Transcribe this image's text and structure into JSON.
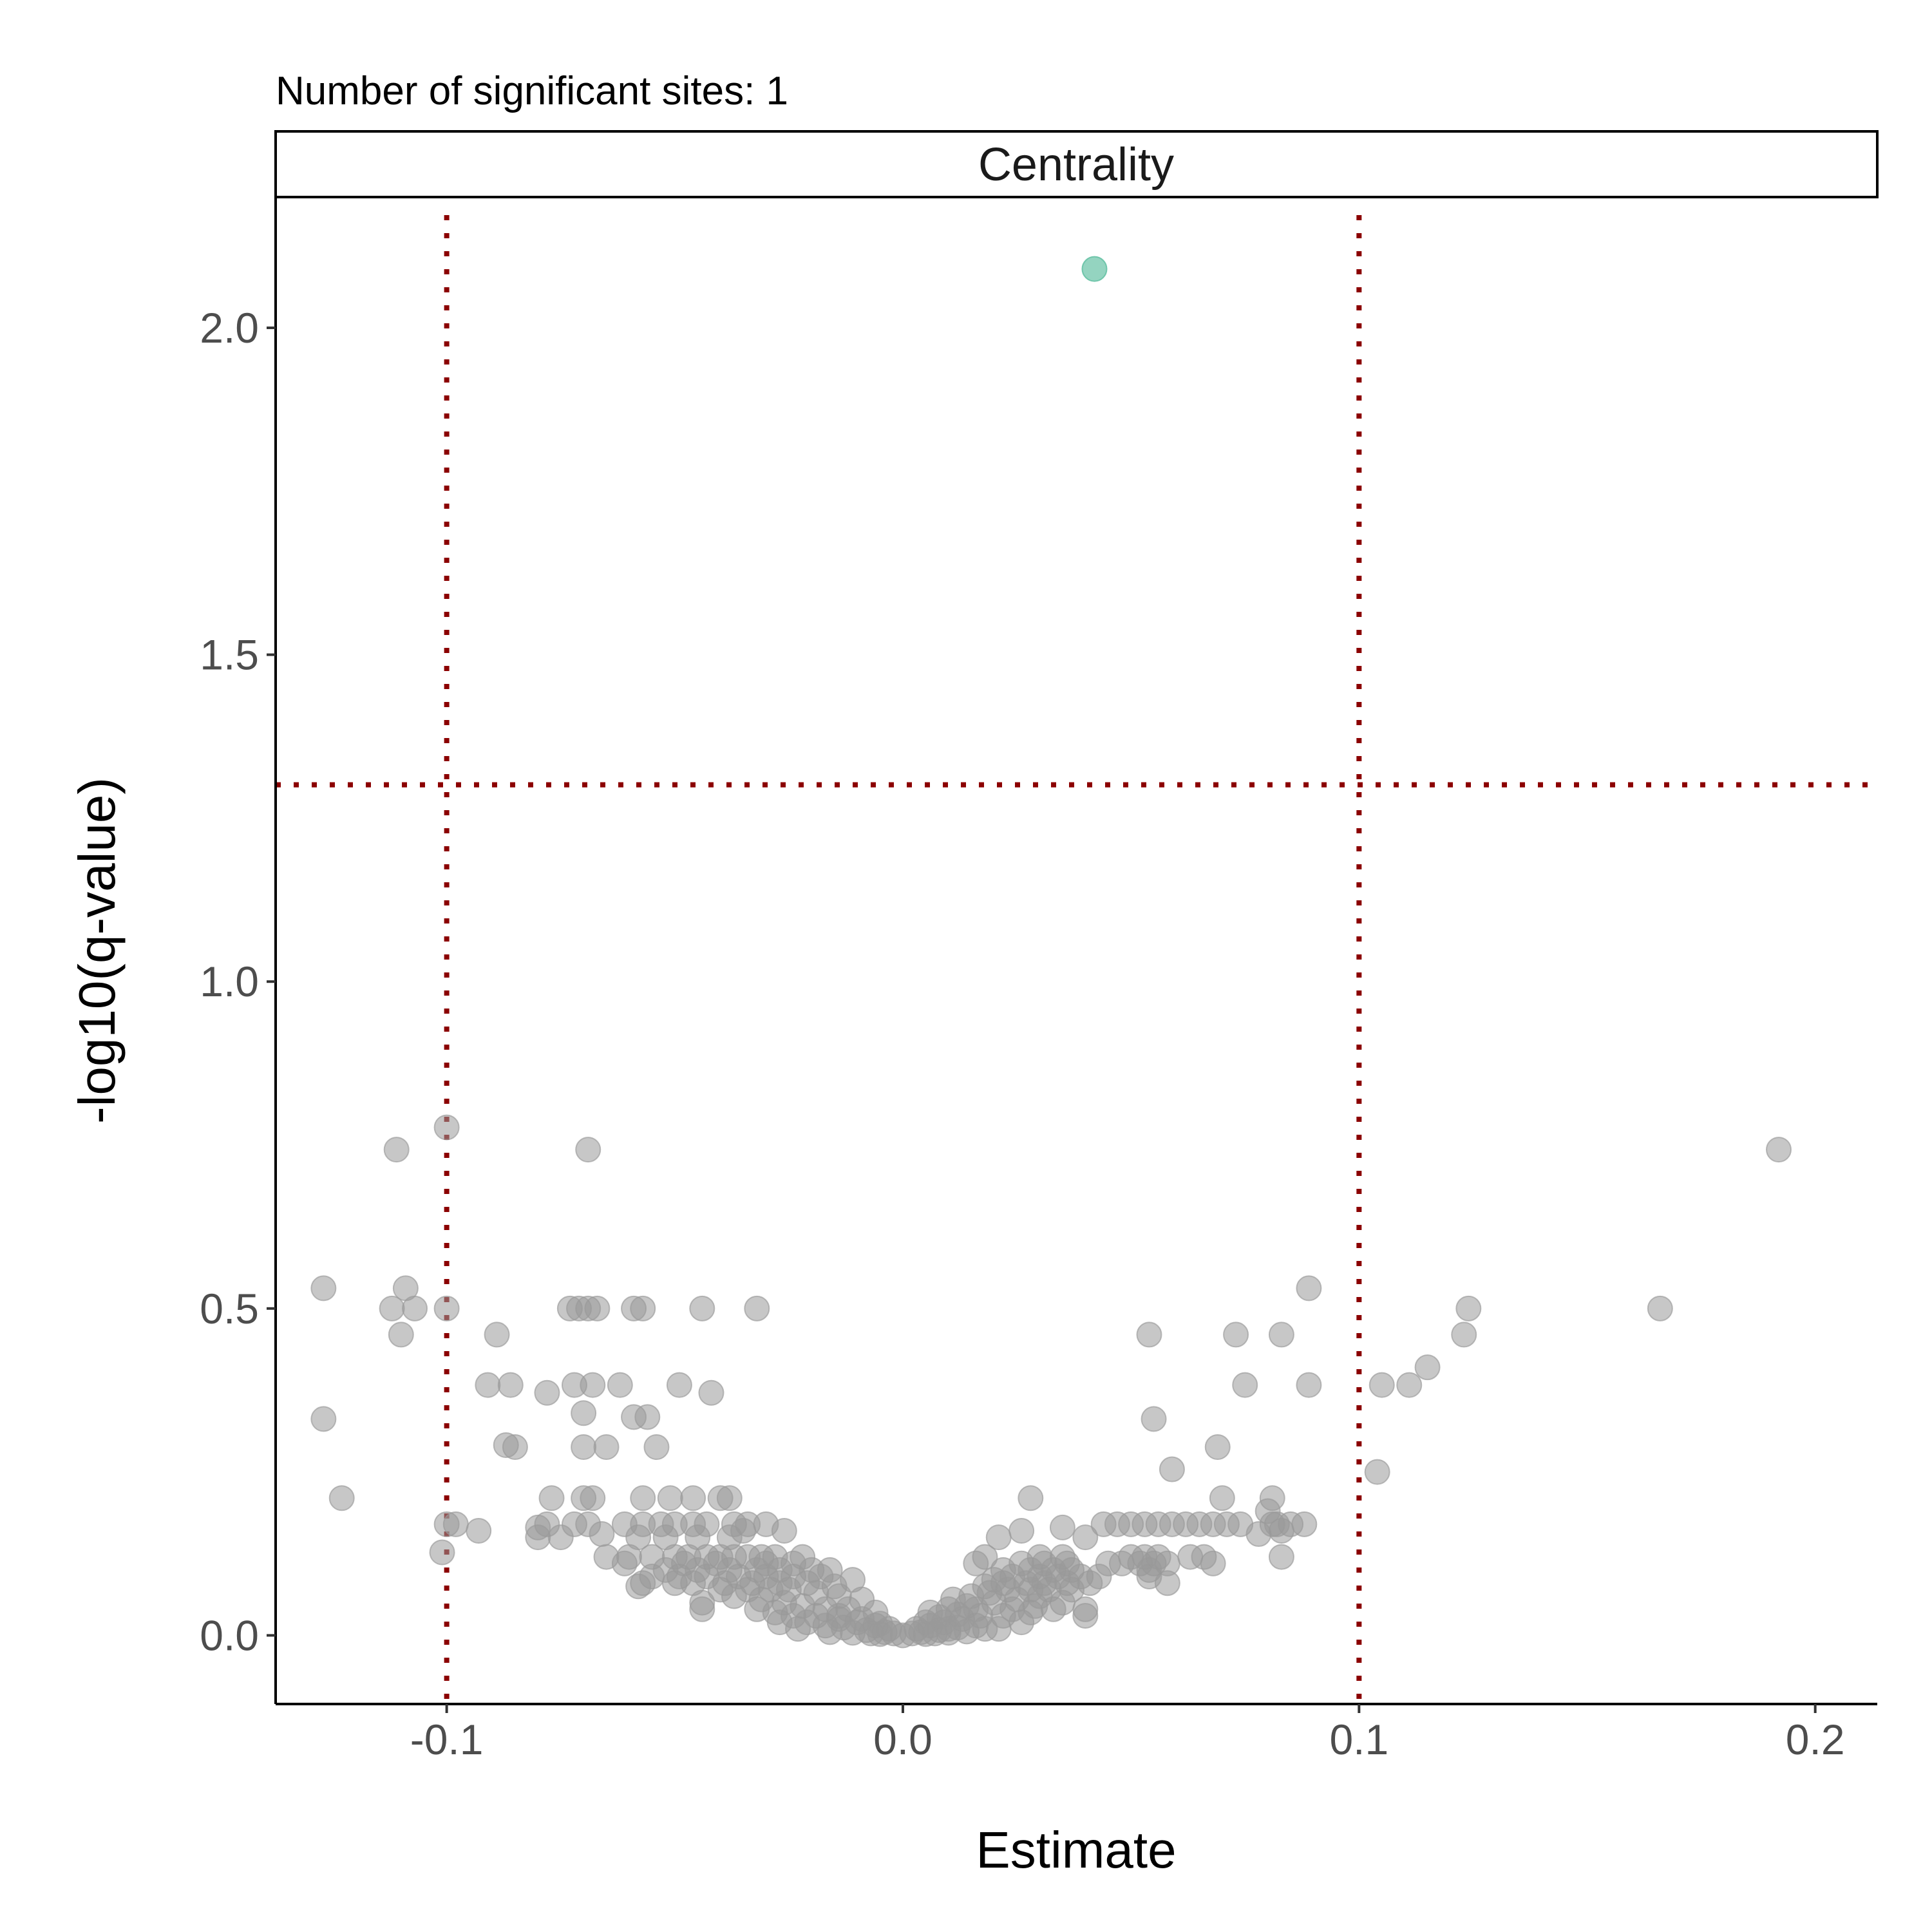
{
  "chart_data": {
    "type": "scatter",
    "subtitle": "Number of significant sites: 1",
    "facet_label": "Centrality",
    "xlabel": "Estimate",
    "ylabel": "-log10(q-value)",
    "xlim": [
      -0.1375,
      0.2136
    ],
    "ylim": [
      -0.105,
      2.2
    ],
    "x_ticks": [
      -0.1,
      0.0,
      0.1,
      0.2
    ],
    "x_tick_labels": [
      "-0.1",
      "0.0",
      "0.1",
      "0.2"
    ],
    "y_ticks": [
      0.0,
      0.5,
      1.0,
      1.5,
      2.0
    ],
    "y_tick_labels": [
      "0.0",
      "0.5",
      "1.0",
      "1.5",
      "2.0"
    ],
    "grid": false,
    "thresholds": {
      "x": [
        -0.1,
        0.1
      ],
      "y": [
        1.301
      ],
      "color": "#8b0000"
    },
    "colors": {
      "significant": "#66c2a5",
      "not_significant": "#999999"
    },
    "series": [
      {
        "name": "significant",
        "points": [
          [
            0.042,
            2.09
          ]
        ]
      },
      {
        "name": "not significant",
        "points": [
          [
            -0.1,
            0.777
          ],
          [
            -0.111,
            0.743
          ],
          [
            -0.069,
            0.743
          ],
          [
            0.192,
            0.743
          ],
          [
            -0.127,
            0.531
          ],
          [
            -0.109,
            0.531
          ],
          [
            0.089,
            0.531
          ],
          [
            -0.112,
            0.5
          ],
          [
            -0.107,
            0.5
          ],
          [
            -0.1,
            0.5
          ],
          [
            -0.073,
            0.5
          ],
          [
            -0.071,
            0.5
          ],
          [
            -0.069,
            0.5
          ],
          [
            -0.067,
            0.5
          ],
          [
            -0.059,
            0.5
          ],
          [
            -0.057,
            0.5
          ],
          [
            -0.044,
            0.5
          ],
          [
            -0.032,
            0.5
          ],
          [
            0.124,
            0.5
          ],
          [
            0.166,
            0.5
          ],
          [
            -0.11,
            0.46
          ],
          [
            -0.089,
            0.46
          ],
          [
            0.054,
            0.46
          ],
          [
            0.073,
            0.46
          ],
          [
            0.083,
            0.46
          ],
          [
            0.123,
            0.46
          ],
          [
            0.115,
            0.41
          ],
          [
            -0.091,
            0.383
          ],
          [
            -0.086,
            0.383
          ],
          [
            -0.072,
            0.383
          ],
          [
            -0.068,
            0.383
          ],
          [
            -0.062,
            0.383
          ],
          [
            -0.049,
            0.383
          ],
          [
            0.075,
            0.383
          ],
          [
            0.089,
            0.383
          ],
          [
            0.105,
            0.383
          ],
          [
            0.111,
            0.383
          ],
          [
            -0.078,
            0.371
          ],
          [
            -0.042,
            0.371
          ],
          [
            -0.07,
            0.34
          ],
          [
            -0.059,
            0.334
          ],
          [
            -0.056,
            0.334
          ],
          [
            -0.127,
            0.331
          ],
          [
            0.055,
            0.331
          ],
          [
            -0.087,
            0.291
          ],
          [
            -0.085,
            0.288
          ],
          [
            -0.07,
            0.288
          ],
          [
            -0.065,
            0.288
          ],
          [
            -0.054,
            0.288
          ],
          [
            0.069,
            0.288
          ],
          [
            0.059,
            0.254
          ],
          [
            0.104,
            0.25
          ],
          [
            -0.123,
            0.21
          ],
          [
            -0.077,
            0.21
          ],
          [
            -0.07,
            0.21
          ],
          [
            -0.068,
            0.21
          ],
          [
            -0.057,
            0.21
          ],
          [
            -0.051,
            0.21
          ],
          [
            -0.046,
            0.21
          ],
          [
            -0.04,
            0.21
          ],
          [
            -0.038,
            0.21
          ],
          [
            0.028,
            0.21
          ],
          [
            0.07,
            0.21
          ],
          [
            0.081,
            0.21
          ],
          [
            -0.1,
            0.17
          ],
          [
            -0.098,
            0.17
          ],
          [
            -0.078,
            0.17
          ],
          [
            -0.072,
            0.17
          ],
          [
            -0.069,
            0.17
          ],
          [
            -0.061,
            0.17
          ],
          [
            -0.057,
            0.17
          ],
          [
            -0.053,
            0.17
          ],
          [
            -0.05,
            0.17
          ],
          [
            -0.046,
            0.17
          ],
          [
            -0.043,
            0.17
          ],
          [
            -0.037,
            0.17
          ],
          [
            -0.034,
            0.17
          ],
          [
            -0.03,
            0.17
          ],
          [
            0.044,
            0.17
          ],
          [
            0.047,
            0.17
          ],
          [
            0.05,
            0.17
          ],
          [
            0.053,
            0.17
          ],
          [
            0.056,
            0.17
          ],
          [
            0.059,
            0.17
          ],
          [
            0.062,
            0.17
          ],
          [
            0.065,
            0.17
          ],
          [
            0.068,
            0.17
          ],
          [
            0.071,
            0.17
          ],
          [
            0.074,
            0.17
          ],
          [
            0.081,
            0.17
          ],
          [
            0.085,
            0.17
          ],
          [
            0.088,
            0.17
          ],
          [
            -0.08,
            0.165
          ],
          [
            -0.093,
            0.16
          ],
          [
            -0.066,
            0.155
          ],
          [
            -0.035,
            0.16
          ],
          [
            -0.026,
            0.16
          ],
          [
            0.026,
            0.16
          ],
          [
            0.035,
            0.165
          ],
          [
            0.078,
            0.155
          ],
          [
            0.083,
            0.16
          ],
          [
            -0.08,
            0.15
          ],
          [
            -0.075,
            0.15
          ],
          [
            -0.058,
            0.15
          ],
          [
            -0.052,
            0.15
          ],
          [
            -0.045,
            0.15
          ],
          [
            -0.038,
            0.15
          ],
          [
            0.021,
            0.15
          ],
          [
            0.04,
            0.15
          ],
          [
            0.08,
            0.19
          ],
          [
            0.082,
            0.17
          ],
          [
            -0.101,
            0.127
          ],
          [
            -0.065,
            0.12
          ],
          [
            -0.06,
            0.12
          ],
          [
            -0.055,
            0.12
          ],
          [
            -0.05,
            0.12
          ],
          [
            -0.047,
            0.12
          ],
          [
            -0.043,
            0.12
          ],
          [
            -0.04,
            0.12
          ],
          [
            -0.037,
            0.12
          ],
          [
            -0.034,
            0.12
          ],
          [
            -0.031,
            0.12
          ],
          [
            -0.028,
            0.12
          ],
          [
            -0.022,
            0.12
          ],
          [
            0.018,
            0.12
          ],
          [
            0.03,
            0.12
          ],
          [
            0.035,
            0.12
          ],
          [
            0.05,
            0.12
          ],
          [
            0.053,
            0.12
          ],
          [
            0.056,
            0.12
          ],
          [
            0.063,
            0.12
          ],
          [
            0.066,
            0.12
          ],
          [
            0.083,
            0.12
          ],
          [
            -0.061,
            0.11
          ],
          [
            -0.048,
            0.11
          ],
          [
            -0.041,
            0.11
          ],
          [
            -0.03,
            0.11
          ],
          [
            -0.024,
            0.11
          ],
          [
            -0.016,
            0.1
          ],
          [
            0.016,
            0.11
          ],
          [
            0.026,
            0.11
          ],
          [
            0.031,
            0.11
          ],
          [
            0.036,
            0.11
          ],
          [
            0.045,
            0.11
          ],
          [
            0.048,
            0.11
          ],
          [
            0.052,
            0.11
          ],
          [
            0.055,
            0.11
          ],
          [
            0.058,
            0.11
          ],
          [
            0.068,
            0.11
          ],
          [
            -0.052,
            0.1
          ],
          [
            -0.045,
            0.1
          ],
          [
            -0.038,
            0.1
          ],
          [
            -0.032,
            0.1
          ],
          [
            -0.027,
            0.1
          ],
          [
            -0.02,
            0.1
          ],
          [
            0.022,
            0.1
          ],
          [
            0.028,
            0.1
          ],
          [
            0.033,
            0.1
          ],
          [
            0.037,
            0.1
          ],
          [
            0.054,
            0.1
          ],
          [
            -0.055,
            0.09
          ],
          [
            -0.049,
            0.09
          ],
          [
            -0.043,
            0.09
          ],
          [
            -0.036,
            0.09
          ],
          [
            -0.03,
            0.09
          ],
          [
            -0.024,
            0.09
          ],
          [
            -0.018,
            0.09
          ],
          [
            -0.011,
            0.085
          ],
          [
            0.02,
            0.085
          ],
          [
            0.024,
            0.09
          ],
          [
            0.03,
            0.09
          ],
          [
            0.034,
            0.09
          ],
          [
            0.039,
            0.09
          ],
          [
            0.043,
            0.09
          ],
          [
            0.054,
            0.09
          ],
          [
            -0.057,
            0.08
          ],
          [
            -0.05,
            0.08
          ],
          [
            -0.046,
            0.08
          ],
          [
            -0.039,
            0.08
          ],
          [
            -0.033,
            0.08
          ],
          [
            -0.027,
            0.08
          ],
          [
            -0.021,
            0.08
          ],
          [
            -0.015,
            0.075
          ],
          [
            0.018,
            0.075
          ],
          [
            0.022,
            0.08
          ],
          [
            0.027,
            0.08
          ],
          [
            0.031,
            0.08
          ],
          [
            0.036,
            0.08
          ],
          [
            0.041,
            0.08
          ],
          [
            0.058,
            0.08
          ],
          [
            -0.058,
            0.075
          ],
          [
            -0.04,
            0.07
          ],
          [
            -0.034,
            0.07
          ],
          [
            -0.029,
            0.07
          ],
          [
            -0.025,
            0.07
          ],
          [
            -0.019,
            0.065
          ],
          [
            -0.014,
            0.06
          ],
          [
            -0.009,
            0.055
          ],
          [
            0.011,
            0.055
          ],
          [
            0.015,
            0.06
          ],
          [
            0.019,
            0.065
          ],
          [
            0.023,
            0.07
          ],
          [
            0.028,
            0.07
          ],
          [
            0.032,
            0.07
          ],
          [
            0.037,
            0.07
          ],
          [
            -0.044,
            0.05
          ],
          [
            -0.044,
            0.04
          ],
          [
            -0.037,
            0.06
          ],
          [
            -0.031,
            0.055
          ],
          [
            -0.026,
            0.05
          ],
          [
            -0.022,
            0.045
          ],
          [
            -0.017,
            0.04
          ],
          [
            -0.012,
            0.04
          ],
          [
            -0.006,
            0.035
          ],
          [
            0.006,
            0.035
          ],
          [
            0.01,
            0.04
          ],
          [
            0.014,
            0.045
          ],
          [
            0.02,
            0.05
          ],
          [
            0.025,
            0.055
          ],
          [
            0.03,
            0.06
          ],
          [
            0.035,
            0.05
          ],
          [
            0.04,
            0.04
          ],
          [
            0.04,
            0.03
          ],
          [
            -0.032,
            0.04
          ],
          [
            -0.028,
            0.035
          ],
          [
            -0.024,
            0.03
          ],
          [
            -0.019,
            0.03
          ],
          [
            -0.014,
            0.025
          ],
          [
            -0.01,
            0.02
          ],
          [
            -0.006,
            0.015
          ],
          [
            -0.003,
            0.01
          ],
          [
            0.003,
            0.01
          ],
          [
            0.006,
            0.015
          ],
          [
            0.009,
            0.02
          ],
          [
            0.013,
            0.025
          ],
          [
            0.017,
            0.03
          ],
          [
            0.022,
            0.03
          ],
          [
            0.028,
            0.035
          ],
          [
            0.026,
            0.02
          ],
          [
            -0.027,
            0.02
          ],
          [
            -0.021,
            0.02
          ],
          [
            -0.017,
            0.015
          ],
          [
            -0.013,
            0.012
          ],
          [
            -0.008,
            0.008
          ],
          [
            -0.004,
            0.005
          ],
          [
            -0.002,
            0.003
          ],
          [
            0.0,
            0.0
          ],
          [
            0.002,
            0.003
          ],
          [
            0.004,
            0.005
          ],
          [
            0.008,
            0.008
          ],
          [
            0.012,
            0.012
          ],
          [
            0.016,
            0.015
          ],
          [
            0.021,
            0.01
          ],
          [
            -0.023,
            0.01
          ],
          [
            -0.016,
            0.005
          ],
          [
            -0.011,
            0.004
          ],
          [
            -0.007,
            0.003
          ],
          [
            -0.005,
            0.002
          ],
          [
            0.005,
            0.002
          ],
          [
            0.007,
            0.003
          ],
          [
            0.01,
            0.004
          ],
          [
            0.01,
            0.01
          ],
          [
            0.014,
            0.006
          ],
          [
            0.018,
            0.01
          ],
          [
            -0.014,
            0.03
          ],
          [
            -0.009,
            0.025
          ],
          [
            -0.005,
            0.018
          ],
          [
            0.005,
            0.02
          ],
          [
            0.008,
            0.028
          ],
          [
            0.012,
            0.032
          ],
          [
            0.016,
            0.04
          ],
          [
            0.024,
            0.04
          ],
          [
            0.029,
            0.045
          ],
          [
            0.033,
            0.04
          ]
        ]
      }
    ]
  }
}
